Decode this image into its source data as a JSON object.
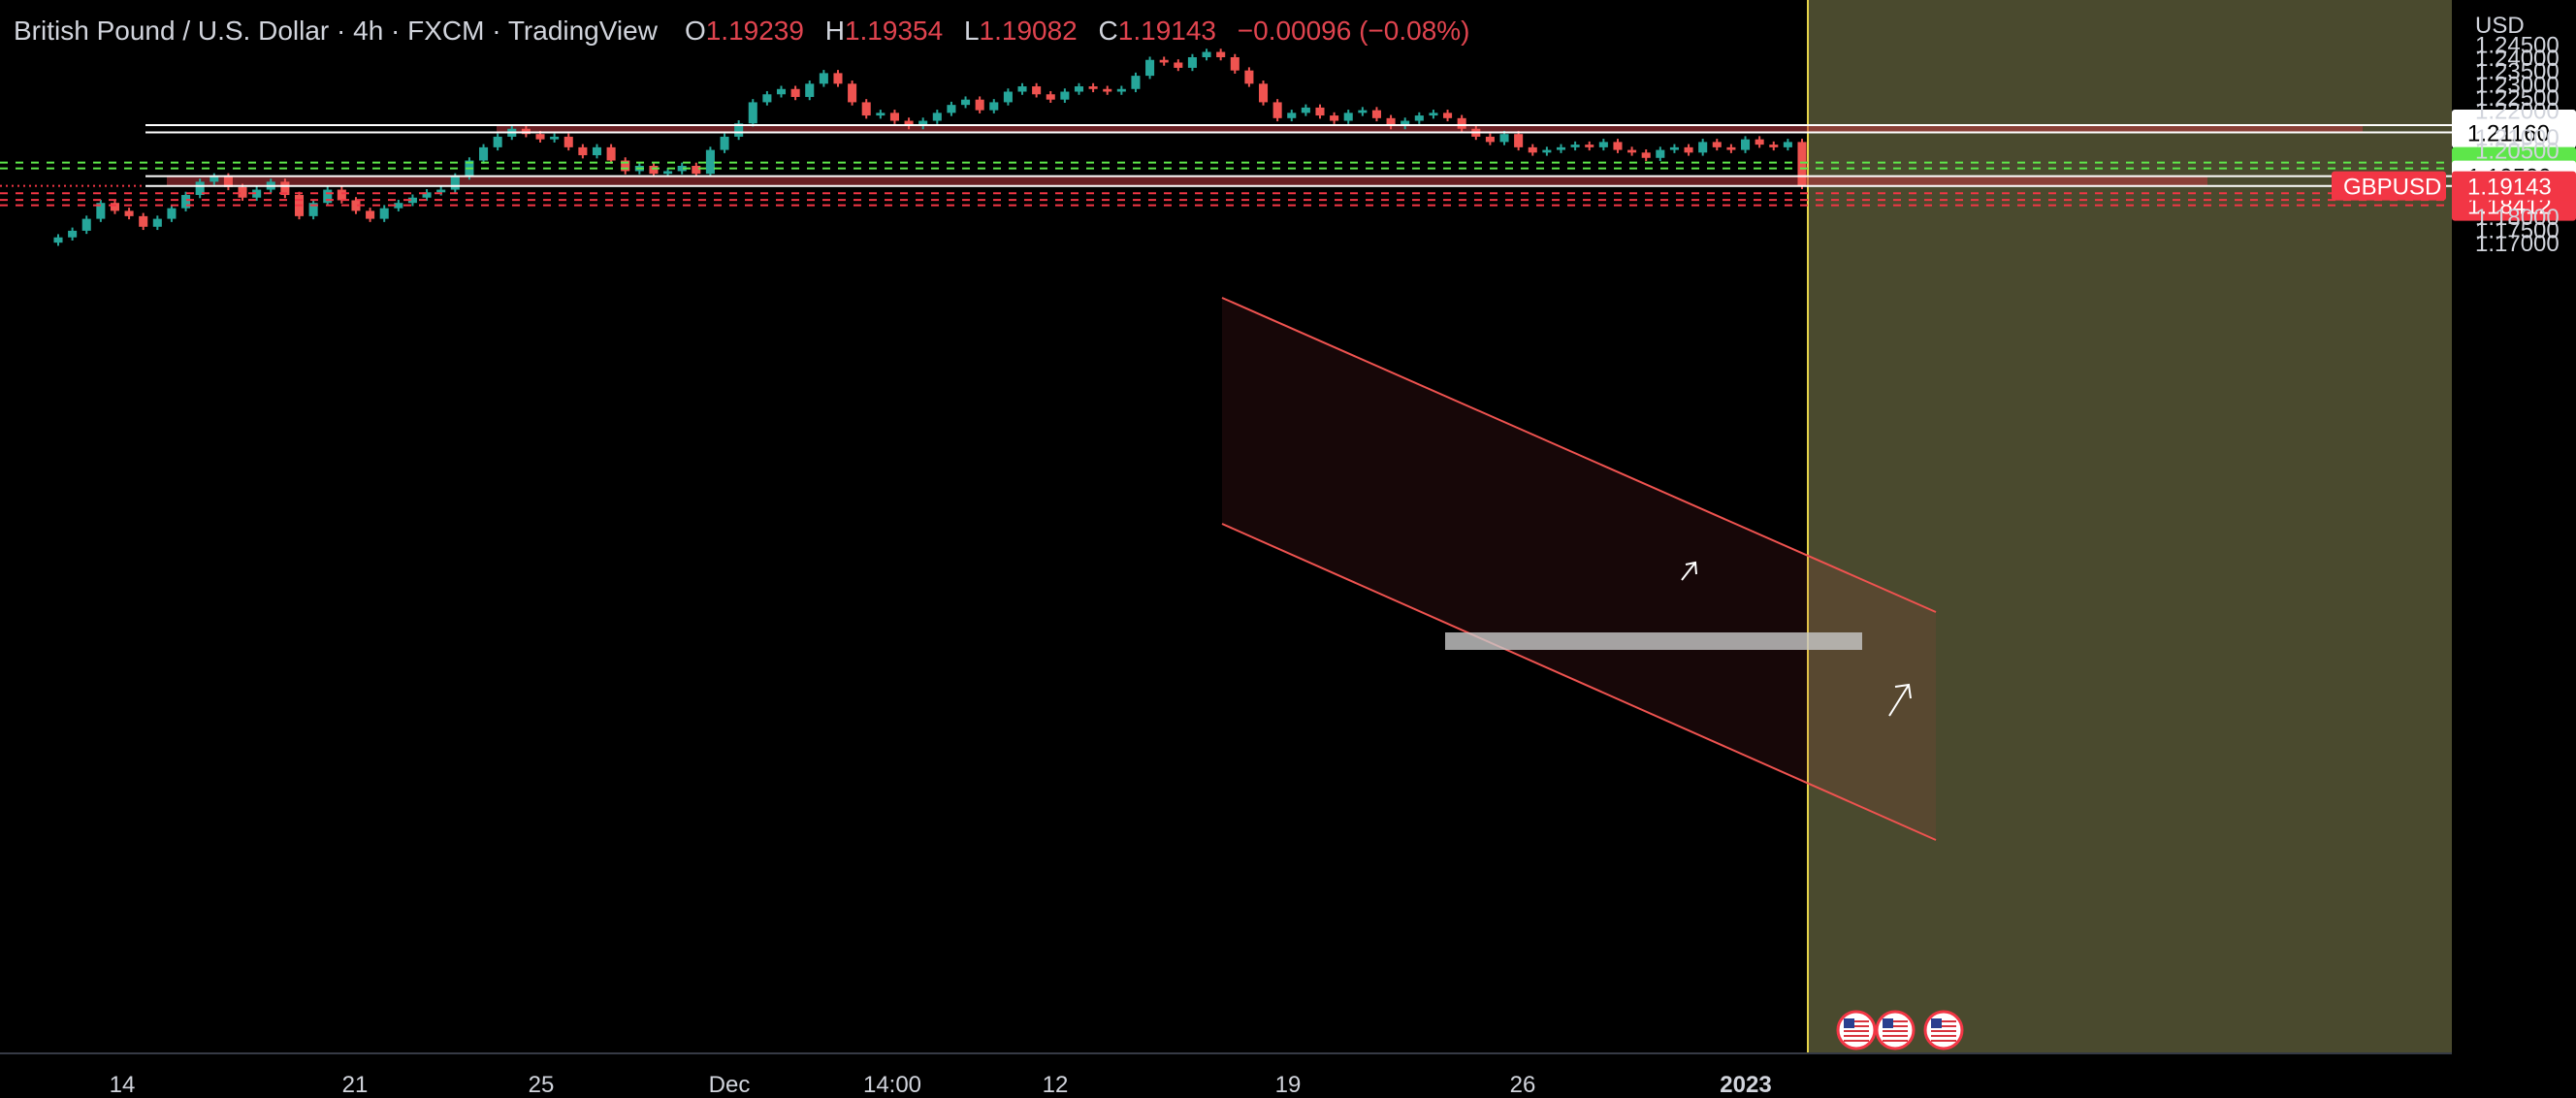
{
  "header": {
    "symbol_title": "British Pound / U.S. Dollar · 4h · FXCM · TradingView",
    "open_label": "O",
    "open": "1.19239",
    "high_label": "H",
    "high": "1.19354",
    "low_label": "L",
    "low": "1.19082",
    "close_label": "C",
    "close": "1.19143",
    "change": "−0.00096 (−0.08%)"
  },
  "currency_label": "USD",
  "colors": {
    "up": "#26a69a",
    "down": "#ef5350",
    "zone": "#c0393f",
    "forecast_bg": "#4a4a2e",
    "divider": "#e6d44a",
    "buy_badge": "#5ee64a",
    "sell_badge": "#f23645"
  },
  "chart_data": {
    "type": "candlestick",
    "timeframe": "4h",
    "y_range": [
      1.17,
      1.245
    ],
    "y_ticks": [
      "1.24500",
      "1.24000",
      "1.23500",
      "1.23000",
      "1.22500",
      "1.22000",
      "1.21000",
      "1.20500",
      "1.18000",
      "1.17500",
      "1.17000"
    ],
    "x_ticks": [
      "14",
      "21",
      "25",
      "Dec",
      "14:00",
      "12",
      "19",
      "26",
      "2023"
    ],
    "price_levels": [
      {
        "label": "1.21435",
        "value": 1.21435,
        "style": "solid",
        "badge": "white"
      },
      {
        "label": "1.21160",
        "value": 1.2116,
        "style": "solid",
        "badge": "white"
      },
      {
        "label": "1.20024",
        "value": 1.20024,
        "style": "dashed-green",
        "badge": "green"
      },
      {
        "label": "1.19805",
        "value": 1.19805,
        "style": "dashed-green",
        "badge": "green"
      },
      {
        "label": "1.19509",
        "value": 1.19509,
        "style": "solid",
        "badge": "white"
      },
      {
        "label": "1.19140",
        "value": 1.1914,
        "style": "solid",
        "badge": "white"
      },
      {
        "label": "1.18866",
        "value": 1.18866,
        "style": "dashed-red",
        "badge": "red"
      },
      {
        "label": "1.18611",
        "value": 1.18611,
        "style": "dashed-red",
        "badge": "red"
      },
      {
        "label": "1.18412",
        "value": 1.18412,
        "style": "dashed-red",
        "badge": "red"
      }
    ],
    "last_price": {
      "symbol": "GBPUSD",
      "value": 1.19143,
      "label": "1.19143"
    },
    "zones": [
      {
        "top": 1.21435,
        "bottom": 1.2116
      },
      {
        "top": 1.19509,
        "bottom": 1.1914
      }
    ],
    "closes": [
      1.172,
      1.1745,
      1.179,
      1.185,
      1.182,
      1.18,
      1.176,
      1.179,
      1.183,
      1.188,
      1.193,
      1.195,
      1.191,
      1.187,
      1.19,
      1.193,
      1.188,
      1.18,
      1.185,
      1.19,
      1.186,
      1.182,
      1.179,
      1.183,
      1.185,
      1.187,
      1.189,
      1.19,
      1.195,
      1.201,
      1.206,
      1.21,
      1.213,
      1.211,
      1.209,
      1.21,
      1.206,
      1.203,
      1.206,
      1.201,
      1.197,
      1.199,
      1.196,
      1.197,
      1.199,
      1.196,
      1.205,
      1.21,
      1.215,
      1.223,
      1.226,
      1.228,
      1.225,
      1.23,
      1.234,
      1.23,
      1.223,
      1.218,
      1.219,
      1.216,
      1.214,
      1.216,
      1.219,
      1.222,
      1.224,
      1.22,
      1.223,
      1.227,
      1.229,
      1.226,
      1.224,
      1.227,
      1.229,
      1.228,
      1.227,
      1.228,
      1.233,
      1.239,
      1.238,
      1.236,
      1.24,
      1.242,
      1.24,
      1.235,
      1.23,
      1.223,
      1.217,
      1.219,
      1.221,
      1.218,
      1.216,
      1.219,
      1.22,
      1.217,
      1.214,
      1.216,
      1.218,
      1.219,
      1.217,
      1.213,
      1.21,
      1.208,
      1.211,
      1.206,
      1.204,
      1.205,
      1.206,
      1.207,
      1.206,
      1.208,
      1.205,
      1.204,
      1.202,
      1.205,
      1.206,
      1.204,
      1.208,
      1.206,
      1.205,
      1.209,
      1.207,
      1.206,
      1.208,
      1.1914
    ]
  }
}
